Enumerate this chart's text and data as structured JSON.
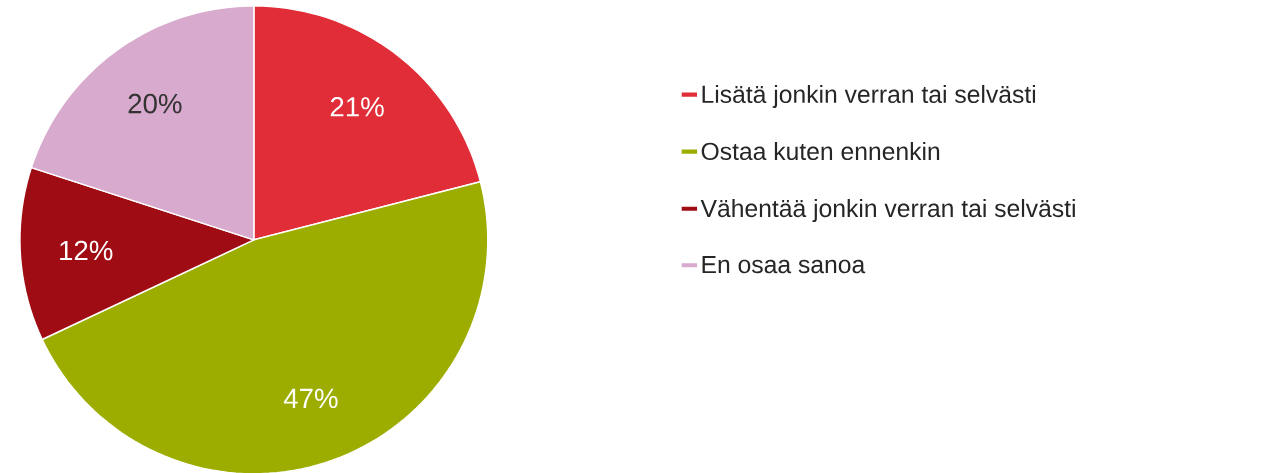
{
  "chart_data": {
    "type": "pie",
    "categories": [
      "Lisätä jonkin verran tai selvästi",
      "Ostaa kuten ennenkin",
      "Vähentää jonkin verran tai selvästi",
      "En osaa sanoa"
    ],
    "values": [
      21,
      47,
      12,
      20
    ],
    "value_labels": [
      "21%",
      "47%",
      "12%",
      "20%"
    ],
    "colors": [
      "#e02d37",
      "#9cad00",
      "#a00c14",
      "#d8aacd"
    ],
    "legend": "right"
  }
}
